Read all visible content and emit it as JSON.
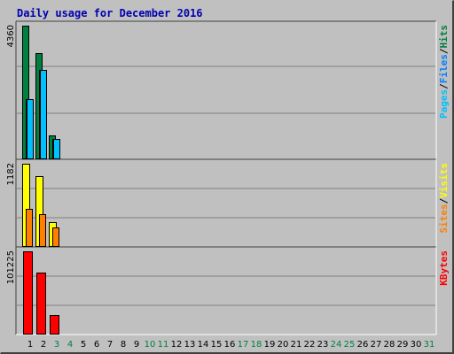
{
  "title": "Daily usage for December 2016",
  "colors": {
    "hits": "#008040",
    "files": "#0080ff",
    "pages": "#00c0ff",
    "visits": "#ffff00",
    "sites": "#ff8000",
    "kbytes": "#ff0000",
    "weekend_day": "#008040",
    "weekday": "#000000",
    "title": "#0000b0"
  },
  "chart_data": [
    {
      "type": "bar",
      "title": "Daily usage for December 2016",
      "ylabel_parts": [
        "Pages",
        "/",
        "Files",
        "/",
        "Hits"
      ],
      "scale_label": "4360",
      "ylim": [
        0,
        4360
      ],
      "categories": [
        "1",
        "2",
        "3"
      ],
      "series": [
        {
          "name": "Hits",
          "values": [
            4360,
            3470,
            780
          ]
        },
        {
          "name": "Files",
          "values": [
            1950,
            2930,
            650
          ]
        },
        {
          "name": "Pages",
          "values": [
            1950,
            2930,
            650
          ]
        }
      ],
      "grid": true
    },
    {
      "type": "bar",
      "ylabel_parts": [
        "Sites",
        "/",
        "Visits"
      ],
      "scale_label": "1182",
      "ylim": [
        0,
        1182
      ],
      "categories": [
        "1",
        "2",
        "3"
      ],
      "series": [
        {
          "name": "Visits",
          "values": [
            1182,
            1000,
            355
          ]
        },
        {
          "name": "Sites",
          "values": [
            540,
            470,
            280
          ]
        }
      ],
      "grid": true
    },
    {
      "type": "bar",
      "ylabel_parts": [
        "KBytes"
      ],
      "scale_label": "101225",
      "ylim": [
        0,
        101225
      ],
      "categories": [
        "1",
        "2",
        "3"
      ],
      "series": [
        {
          "name": "KBytes",
          "values": [
            101225,
            75600,
            23400
          ]
        }
      ],
      "grid": true
    }
  ],
  "days": [
    "1",
    "2",
    "3",
    "4",
    "5",
    "6",
    "7",
    "8",
    "9",
    "10",
    "11",
    "12",
    "13",
    "14",
    "15",
    "16",
    "17",
    "18",
    "19",
    "20",
    "21",
    "22",
    "23",
    "24",
    "25",
    "26",
    "27",
    "28",
    "29",
    "30",
    "31"
  ],
  "weekend_days": [
    "3",
    "4",
    "10",
    "11",
    "17",
    "18",
    "24",
    "25",
    "31"
  ]
}
